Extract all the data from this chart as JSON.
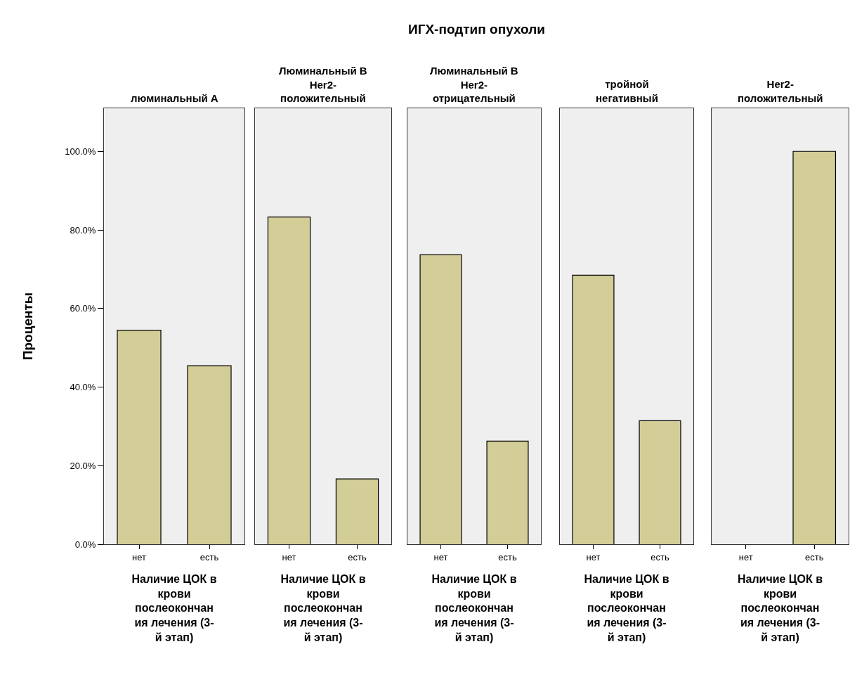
{
  "chart_data": [
    {
      "type": "bar",
      "title": "люминальный A",
      "annotations": [
        "ИГХ-подтип опухоли"
      ],
      "ylabel": "Проценты",
      "xlabel": "Наличие ЦОК в крови послеокончания лечения (3-й этап)",
      "categories": [
        "нет",
        "есть"
      ],
      "values": [
        54.5,
        45.5
      ],
      "color": "#d3cd97",
      "ylim": [
        0,
        111
      ],
      "yticks": [
        {
          "value": 0,
          "label": "0.0%"
        },
        {
          "value": 20,
          "label": "20.0%"
        },
        {
          "value": 40,
          "label": "40.0%"
        },
        {
          "value": 60,
          "label": "60.0%"
        },
        {
          "value": 80,
          "label": "80.0%"
        },
        {
          "value": 100,
          "label": "100.0%"
        }
      ]
    },
    {
      "type": "bar",
      "title": "Люминальный B Her2-положительный",
      "xlabel": "Наличие ЦОК в крови послеокончания лечения (3-й этап)",
      "categories": [
        "нет",
        "есть"
      ],
      "values": [
        83.3,
        16.7
      ],
      "color": "#d3cd97",
      "ylim": [
        0,
        111
      ],
      "tick_labels": "x"
    },
    {
      "type": "bar",
      "title": "Люминальный B Her2-отрицательный",
      "xlabel": "Наличие ЦОК в крови послеокончания лечения (3-й этап)",
      "categories": [
        "нет",
        "есть"
      ],
      "values": [
        73.7,
        26.3
      ],
      "color": "#d3cd97",
      "ylim": [
        0,
        111
      ],
      "tick_labels": "x"
    },
    {
      "type": "bar",
      "title": "тройной негативный",
      "xlabel": "Наличие ЦОК в крови послеокончания лечения (3-й этап)",
      "categories": [
        "нет",
        "есть"
      ],
      "values": [
        68.5,
        31.5
      ],
      "color": "#d3cd97",
      "ylim": [
        0,
        111
      ],
      "tick_labels": "x"
    },
    {
      "type": "bar",
      "title": "Her2-положительный",
      "xlabel": "Наличие ЦОК в крови послеокончания лечения (3-й этап)",
      "categories": [
        "нет",
        "есть"
      ],
      "values": [
        0,
        100
      ],
      "color": "#d3cd97",
      "ylim": [
        0,
        111
      ],
      "tick_labels": "x"
    }
  ]
}
